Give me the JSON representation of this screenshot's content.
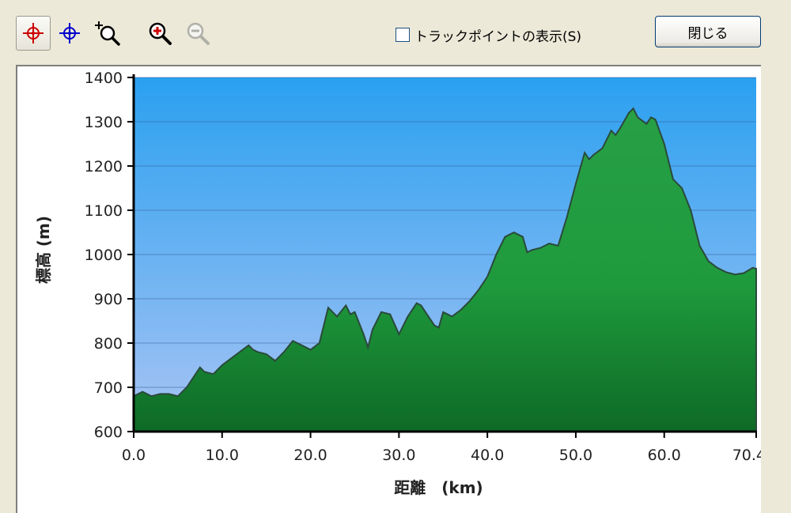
{
  "toolbar": {
    "tools": [
      {
        "icon": "red-crosshair-icon",
        "color": "#cc0000",
        "active": true
      },
      {
        "icon": "blue-crosshair-icon",
        "color": "#0000cc",
        "active": false
      },
      {
        "icon": "zoom-area-icon",
        "active": false
      },
      {
        "icon": "zoom-in-icon",
        "active": false
      },
      {
        "icon": "zoom-out-icon",
        "active": false,
        "disabled": true
      }
    ],
    "track_points_label": "トラックポイントの表示(S)",
    "track_points_checked": false,
    "close_label": "閉じる"
  },
  "chart_data": {
    "type": "area",
    "title": "",
    "xlabel": "距離　(km)",
    "ylabel": "標高 (m)",
    "xlim": [
      0,
      70.4
    ],
    "ylim": [
      600,
      1400
    ],
    "x_ticks": [
      "0.0",
      "10.0",
      "20.0",
      "30.0",
      "40.0",
      "50.0",
      "60.0",
      "70.4"
    ],
    "y_ticks": [
      "600",
      "700",
      "800",
      "900",
      "1000",
      "1100",
      "1200",
      "1300",
      "1400"
    ],
    "grid": true,
    "colors": {
      "fill": "#1e9a3c",
      "line": "#2a4a3a",
      "sky_top": "#2aa0f0",
      "sky_bottom": "#a8c4f4"
    },
    "series": [
      {
        "x": [
          0,
          1,
          2,
          3,
          4,
          5,
          6,
          7,
          7.5,
          8,
          9,
          10,
          11,
          12,
          13,
          13.5,
          14,
          15,
          16,
          17,
          18,
          18.5,
          19,
          20,
          21,
          22,
          23,
          24,
          24.5,
          25,
          26,
          26.5,
          27,
          28,
          29,
          30,
          31,
          32,
          32.5,
          33,
          34,
          34.5,
          35,
          36,
          37,
          38,
          39,
          40,
          41,
          42,
          43,
          44,
          44.5,
          45,
          46,
          47,
          48,
          49,
          50,
          51,
          51.5,
          52,
          53,
          54,
          54.5,
          55,
          56,
          56.5,
          57,
          58,
          58.5,
          59,
          60,
          61,
          62,
          63,
          64,
          65,
          66,
          67,
          68,
          69,
          70,
          70.4
        ],
        "y": [
          680,
          690,
          680,
          685,
          685,
          680,
          700,
          730,
          745,
          735,
          730,
          750,
          765,
          780,
          795,
          785,
          780,
          775,
          760,
          780,
          805,
          800,
          795,
          785,
          800,
          880,
          860,
          885,
          865,
          870,
          820,
          790,
          830,
          870,
          865,
          820,
          860,
          890,
          885,
          870,
          840,
          835,
          870,
          860,
          875,
          895,
          920,
          950,
          1000,
          1040,
          1050,
          1040,
          1005,
          1010,
          1015,
          1025,
          1020,
          1085,
          1160,
          1230,
          1215,
          1225,
          1240,
          1280,
          1270,
          1285,
          1320,
          1330,
          1310,
          1295,
          1310,
          1305,
          1250,
          1170,
          1150,
          1100,
          1020,
          985,
          970,
          960,
          955,
          958,
          970,
          968
        ]
      }
    ]
  }
}
